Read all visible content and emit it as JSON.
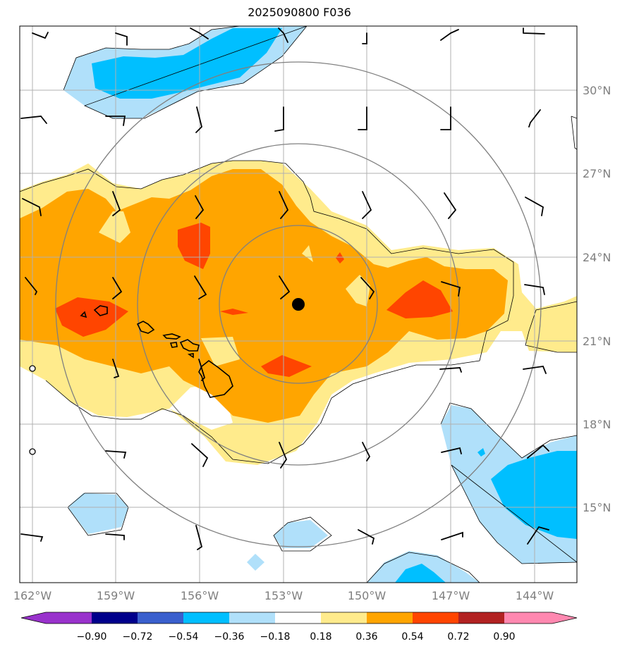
{
  "title": "2025090800 F036",
  "map": {
    "lon_range": [
      -162.5,
      -142.5
    ],
    "lat_range": [
      12.5,
      32.5
    ],
    "lon_ticks": [
      "162°W",
      "159°W",
      "156°W",
      "153°W",
      "150°W",
      "147°W",
      "144°W"
    ],
    "lat_ticks": [
      "30°N",
      "27°N",
      "24°N",
      "21°N",
      "18°N",
      "15°N"
    ],
    "center_marker": {
      "lon": -152.5,
      "lat": 22.3
    },
    "range_rings_deg": [
      2.8,
      5.7,
      8.7
    ],
    "grid": true
  },
  "colorbar": {
    "ticks": [
      "−0.90",
      "−0.72",
      "−0.54",
      "−0.36",
      "−0.18",
      "0.18",
      "0.36",
      "0.54",
      "0.72",
      "0.90"
    ],
    "colors": [
      "#9932cc",
      "#00008b",
      "#3a5fcd",
      "#00bfff",
      "#b0e0fa",
      "#ffffff",
      "#ffeb8c",
      "#ffa500",
      "#ff4500",
      "#b22222",
      "#ff88b0"
    ]
  }
}
